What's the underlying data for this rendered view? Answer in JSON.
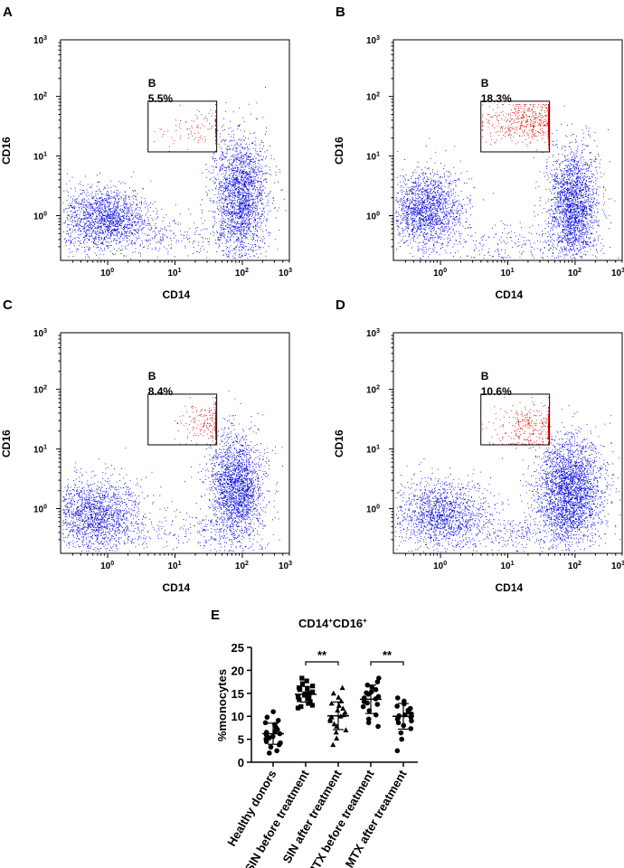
{
  "chart_data": [
    {
      "panel": "A",
      "type": "scatter",
      "xlabel": "CD14",
      "ylabel": "CD16",
      "gate_name": "B",
      "gate_percent": "5.5%",
      "tick_labels": [
        "10^0",
        "10^1",
        "10^2",
        "10^3"
      ],
      "gate_range": {
        "x": [
          0.6,
          1.62
        ],
        "y": [
          1.07,
          1.92
        ]
      },
      "clusters": [
        {
          "color": "#0000dd",
          "n": 1700,
          "cx": -0.05,
          "cy": -0.05,
          "sx": 0.32,
          "sy": 0.27
        },
        {
          "color": "#0000dd",
          "n": 2200,
          "cx": 1.97,
          "cy": 0.3,
          "sx": 0.2,
          "sy": 0.5
        },
        {
          "color": "#0000dd",
          "n": 250,
          "cx": 1.0,
          "cy": -0.35,
          "sx": 0.55,
          "sy": 0.18
        },
        {
          "color": "#dd0000",
          "n": 140,
          "cx": 1.55,
          "cy": 1.45,
          "sx": 0.4,
          "sy": 0.18
        }
      ]
    },
    {
      "panel": "B",
      "type": "scatter",
      "xlabel": "CD14",
      "ylabel": "CD16",
      "gate_name": "B",
      "gate_percent": "18.3%",
      "tick_labels": [
        "10^0",
        "10^1",
        "10^2",
        "10^3"
      ],
      "gate_range": {
        "x": [
          0.6,
          1.62
        ],
        "y": [
          1.07,
          1.92
        ]
      },
      "clusters": [
        {
          "color": "#0000dd",
          "n": 1700,
          "cx": -0.2,
          "cy": 0.1,
          "sx": 0.27,
          "sy": 0.32
        },
        {
          "color": "#0000dd",
          "n": 2200,
          "cx": 1.97,
          "cy": 0.15,
          "sx": 0.18,
          "sy": 0.5
        },
        {
          "color": "#0000dd",
          "n": 250,
          "cx": 1.1,
          "cy": -0.5,
          "sx": 0.6,
          "sy": 0.2
        },
        {
          "color": "#dd0000",
          "n": 600,
          "cx": 1.4,
          "cy": 1.58,
          "sx": 0.38,
          "sy": 0.17
        }
      ]
    },
    {
      "panel": "C",
      "type": "scatter",
      "xlabel": "CD14",
      "ylabel": "CD16",
      "gate_name": "B",
      "gate_percent": "8.4%",
      "tick_labels": [
        "10^0",
        "10^1",
        "10^2",
        "10^3"
      ],
      "gate_range": {
        "x": [
          0.6,
          1.62
        ],
        "y": [
          1.07,
          1.92
        ]
      },
      "clusters": [
        {
          "color": "#0000dd",
          "n": 1800,
          "cx": -0.2,
          "cy": -0.1,
          "sx": 0.35,
          "sy": 0.32
        },
        {
          "color": "#0000dd",
          "n": 2200,
          "cx": 1.92,
          "cy": 0.35,
          "sx": 0.2,
          "sy": 0.45
        },
        {
          "color": "#0000dd",
          "n": 180,
          "cx": 1.2,
          "cy": -0.4,
          "sx": 0.5,
          "sy": 0.18
        },
        {
          "color": "#dd0000",
          "n": 300,
          "cx": 1.6,
          "cy": 1.45,
          "sx": 0.28,
          "sy": 0.18
        }
      ]
    },
    {
      "panel": "D",
      "type": "scatter",
      "xlabel": "CD14",
      "ylabel": "CD16",
      "gate_name": "B",
      "gate_percent": "10.6%",
      "tick_labels": [
        "10^0",
        "10^1",
        "10^2",
        "10^3"
      ],
      "gate_range": {
        "x": [
          0.6,
          1.62
        ],
        "y": [
          1.07,
          1.92
        ]
      },
      "clusters": [
        {
          "color": "#0000dd",
          "n": 1500,
          "cx": 0.0,
          "cy": -0.1,
          "sx": 0.35,
          "sy": 0.3
        },
        {
          "color": "#0000dd",
          "n": 2800,
          "cx": 1.92,
          "cy": 0.3,
          "sx": 0.25,
          "sy": 0.45
        },
        {
          "color": "#0000dd",
          "n": 300,
          "cx": 1.2,
          "cy": -0.4,
          "sx": 0.5,
          "sy": 0.18
        },
        {
          "color": "#dd0000",
          "n": 380,
          "cx": 1.4,
          "cy": 1.38,
          "sx": 0.32,
          "sy": 0.2
        }
      ]
    },
    {
      "panel": "E",
      "type": "scatter",
      "title": "CD14+CD16+",
      "title_main": "CD14",
      "title_sup1": "+",
      "title_mid": "CD16",
      "title_sup2": "+",
      "ylabel": "%monocytes",
      "ylim": [
        0,
        25
      ],
      "yticks": [
        0,
        5,
        10,
        15,
        20,
        25
      ],
      "categories": [
        "Healthy donors",
        "SIN before treatment",
        "SIN after treatment",
        "MTX before treatment",
        "MTX after treatment"
      ],
      "markers": [
        "circle",
        "square",
        "triangle",
        "circle",
        "circle"
      ],
      "means": [
        6.2,
        14.8,
        10.1,
        13.7,
        10.0
      ],
      "sds": [
        2.3,
        1.7,
        3.0,
        3.1,
        2.8
      ],
      "points": [
        [
          2.0,
          2.5,
          3.3,
          3.8,
          4.2,
          4.5,
          5.0,
          5.3,
          5.6,
          5.9,
          6.2,
          6.5,
          6.7,
          7.1,
          7.5,
          8.2,
          8.6,
          9.1,
          9.8,
          11.0
        ],
        [
          11.8,
          12.4,
          12.8,
          13.2,
          13.6,
          13.9,
          14.2,
          14.6,
          14.9,
          15.3,
          15.8,
          16.2,
          16.6,
          17.1,
          17.7,
          18.3,
          12.1,
          14.0,
          15.0,
          16.0
        ],
        [
          3.8,
          5.2,
          6.5,
          7.0,
          7.8,
          8.3,
          9.0,
          9.4,
          10.0,
          10.3,
          10.8,
          11.3,
          11.7,
          12.3,
          12.8,
          13.3,
          14.1,
          15.0,
          16.2,
          9.8
        ],
        [
          7.8,
          8.6,
          9.4,
          10.3,
          11.2,
          12.1,
          12.6,
          13.2,
          13.8,
          14.3,
          14.8,
          15.3,
          15.8,
          16.3,
          16.8,
          17.5,
          18.3,
          12.9,
          14.0,
          15.1
        ],
        [
          2.5,
          5.0,
          6.4,
          7.3,
          8.0,
          8.6,
          9.0,
          9.4,
          9.8,
          10.1,
          10.5,
          10.9,
          11.3,
          11.7,
          12.2,
          12.7,
          13.3,
          14.0,
          9.6,
          10.3
        ]
      ],
      "significance": [
        {
          "from": 1,
          "to": 2,
          "label": "**"
        },
        {
          "from": 3,
          "to": 4,
          "label": "**"
        }
      ]
    }
  ]
}
